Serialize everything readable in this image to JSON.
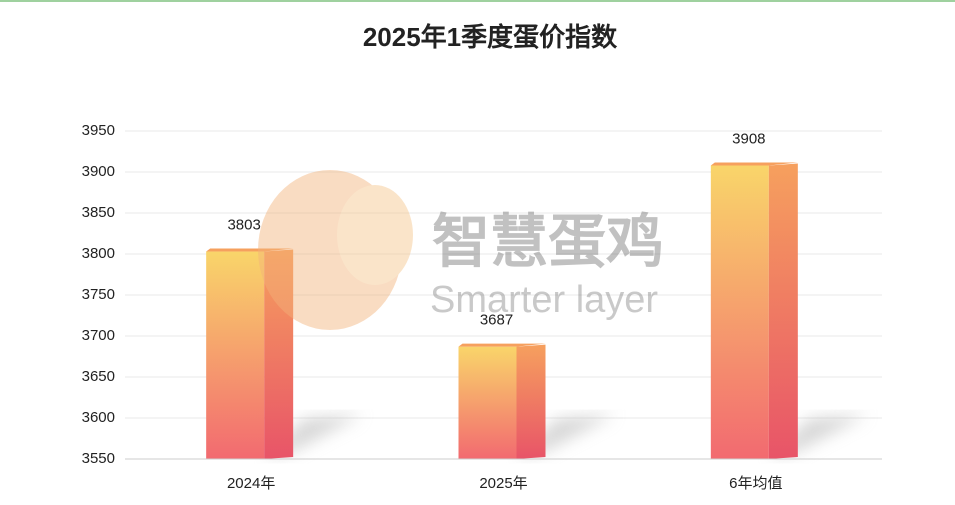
{
  "chart_data": {
    "type": "bar",
    "title": "2025年1季度蛋价指数",
    "categories": [
      "2024年",
      "2025年",
      "6年均值"
    ],
    "values": [
      3803,
      3687,
      3908
    ],
    "ylim": [
      3550,
      3950
    ],
    "yticks": [
      3550,
      3600,
      3650,
      3700,
      3750,
      3800,
      3850,
      3900,
      3950
    ],
    "grid": true,
    "colors": {
      "top": "#f9d56a",
      "bottom": "#f26a70",
      "side_top": "#f6a05e",
      "side_bottom": "#e85468"
    },
    "watermark": {
      "title": "智慧蛋鸡",
      "subtitle": "Smarter layer"
    }
  }
}
